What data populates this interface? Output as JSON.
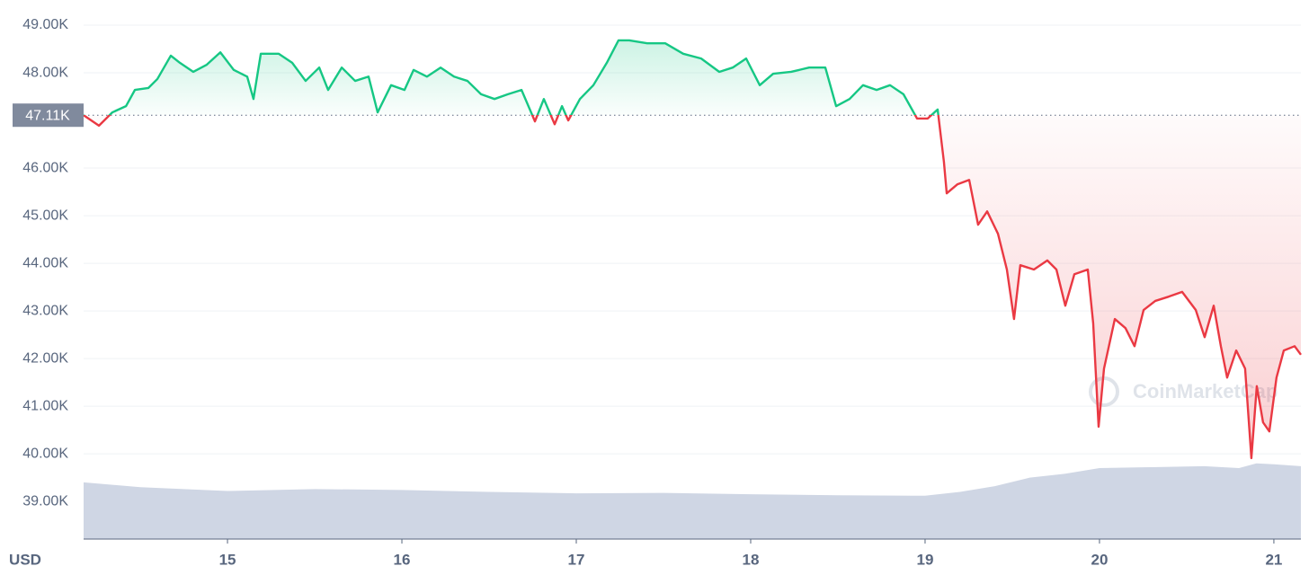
{
  "chart_data": {
    "type": "line",
    "axis_label": "USD",
    "watermark": "CoinMarketCap",
    "xlim": [
      14.175,
      21.155
    ],
    "xticks": [
      15,
      16,
      17,
      18,
      19,
      20,
      21
    ],
    "ylim": [
      38.21,
      49.34
    ],
    "yticks": [
      {
        "value": 39,
        "label": "39.00K"
      },
      {
        "value": 40,
        "label": "40.00K"
      },
      {
        "value": 41,
        "label": "41.00K"
      },
      {
        "value": 42,
        "label": "42.00K"
      },
      {
        "value": 43,
        "label": "43.00K"
      },
      {
        "value": 44,
        "label": "44.00K"
      },
      {
        "value": 45,
        "label": "45.00K"
      },
      {
        "value": 46,
        "label": "46.00K"
      },
      {
        "value": 48,
        "label": "48.00K"
      },
      {
        "value": 49,
        "label": "49.00K"
      }
    ],
    "grid": true,
    "baseline": {
      "value": 47.11,
      "label": "47.11K"
    },
    "up_color": "#16c784",
    "down_color": "#ea3943",
    "x": [
      14.175,
      14.263,
      14.34,
      14.418,
      14.469,
      14.546,
      14.598,
      14.675,
      14.727,
      14.804,
      14.881,
      14.959,
      15.036,
      15.113,
      15.149,
      15.191,
      15.294,
      15.371,
      15.448,
      15.526,
      15.577,
      15.655,
      15.732,
      15.809,
      15.861,
      15.938,
      16.015,
      16.067,
      16.144,
      16.222,
      16.299,
      16.376,
      16.454,
      16.531,
      16.608,
      16.686,
      16.763,
      16.814,
      16.876,
      16.918,
      16.954,
      17.021,
      17.098,
      17.175,
      17.242,
      17.304,
      17.407,
      17.51,
      17.613,
      17.716,
      17.82,
      17.897,
      17.974,
      18.052,
      18.129,
      18.232,
      18.335,
      18.428,
      18.49,
      18.567,
      18.644,
      18.722,
      18.799,
      18.876,
      18.954,
      19.015,
      19.072,
      19.108,
      19.124,
      19.186,
      19.253,
      19.304,
      19.356,
      19.418,
      19.469,
      19.51,
      19.546,
      19.624,
      19.701,
      19.753,
      19.804,
      19.856,
      19.933,
      19.964,
      19.995,
      20.026,
      20.088,
      20.149,
      20.201,
      20.253,
      20.32,
      20.397,
      20.474,
      20.552,
      20.603,
      20.655,
      20.696,
      20.732,
      20.784,
      20.835,
      20.871,
      20.902,
      20.938,
      20.974,
      21.015,
      21.057,
      21.119,
      21.155
    ],
    "values": [
      47.11,
      46.89,
      47.17,
      47.3,
      47.64,
      47.68,
      47.87,
      48.36,
      48.21,
      48.02,
      48.17,
      48.43,
      48.06,
      47.92,
      47.45,
      48.4,
      48.4,
      48.21,
      47.83,
      48.11,
      47.64,
      48.11,
      47.83,
      47.92,
      47.17,
      47.74,
      47.64,
      48.06,
      47.92,
      48.11,
      47.92,
      47.83,
      47.55,
      47.45,
      47.55,
      47.64,
      46.98,
      47.45,
      46.92,
      47.3,
      47.0,
      47.45,
      47.74,
      48.21,
      48.68,
      48.68,
      48.62,
      48.62,
      48.4,
      48.3,
      48.02,
      48.11,
      48.3,
      47.74,
      47.98,
      48.02,
      48.11,
      48.11,
      47.3,
      47.45,
      47.74,
      47.64,
      47.74,
      47.55,
      47.04,
      47.04,
      47.23,
      46.13,
      45.47,
      45.66,
      45.75,
      44.81,
      45.09,
      44.62,
      43.87,
      42.83,
      43.96,
      43.87,
      44.06,
      43.87,
      43.11,
      43.77,
      43.87,
      42.74,
      40.57,
      41.79,
      42.83,
      42.64,
      42.26,
      43.02,
      43.21,
      43.3,
      43.4,
      43.02,
      42.45,
      43.11,
      42.26,
      41.6,
      42.17,
      41.79,
      39.91,
      41.42,
      40.66,
      40.47,
      41.6,
      42.17,
      42.26,
      42.08
    ],
    "volume_area": {
      "color": "#cfd6e4",
      "x": [
        14.175,
        14.5,
        15,
        15.5,
        16,
        16.5,
        17,
        17.5,
        18,
        18.5,
        19,
        19.2,
        19.4,
        19.6,
        19.8,
        20,
        20.3,
        20.6,
        20.8,
        20.9,
        21,
        21.155
      ],
      "values": [
        39.4,
        39.3,
        39.22,
        39.26,
        39.24,
        39.2,
        39.17,
        39.18,
        39.15,
        39.13,
        39.12,
        39.2,
        39.32,
        39.5,
        39.58,
        39.7,
        39.72,
        39.74,
        39.7,
        39.8,
        39.78,
        39.74
      ]
    }
  }
}
